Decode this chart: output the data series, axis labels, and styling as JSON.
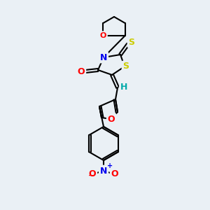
{
  "background_color": "#eaf0f5",
  "bond_color": "#000000",
  "atom_colors": {
    "O": "#ff0000",
    "N": "#0000ee",
    "S": "#cccc00",
    "H": "#00aaaa",
    "C": "#000000"
  },
  "figsize": [
    3.0,
    3.0
  ],
  "dpi": 100
}
